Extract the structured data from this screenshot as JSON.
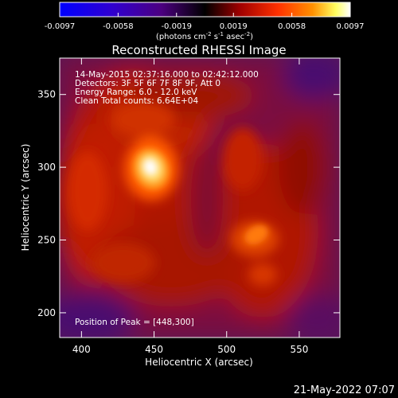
{
  "colorbar": {
    "ticks": [
      "-0.0097",
      "-0.0058",
      "-0.0019",
      "0.0019",
      "0.0058",
      "0.0097"
    ],
    "tick_values": [
      -0.0097,
      -0.0058,
      -0.0019,
      0.0019,
      0.0058,
      0.0097
    ],
    "range": [
      -0.0097,
      0.0097
    ],
    "units_prefix": "(photons cm",
    "units_exp1": "-2",
    "units_mid": " s",
    "units_exp2": "-1",
    "units_mid2": " asec",
    "units_exp3": "-2",
    "units_suffix": ")",
    "colors": [
      "#0000ff",
      "#3000cc",
      "#5000a0",
      "#000000",
      "#a00000",
      "#ff3000",
      "#ff9000",
      "#ffff60",
      "#ffffff"
    ]
  },
  "image": {
    "title": "Reconstructed RHESSI Image",
    "info_lines": [
      "14-May-2015 02:37:16.000 to 02:42:12.000",
      "Detectors: 3F 5F 6F 7F 8F 9F, Att 0",
      "Energy Range: 6.0 - 12.0 keV",
      "Clean     Total counts: 6.64E+04"
    ],
    "peak_label": "Position of Peak = [448,300]",
    "peak_x": 448,
    "peak_y": 300,
    "xlabel": "Heliocentric X (arcsec)",
    "ylabel": "Heliocentric Y (arcsec)",
    "xticks": [
      "400",
      "450",
      "500",
      "550"
    ],
    "xtick_values": [
      400,
      450,
      500,
      550
    ],
    "yticks": [
      "200",
      "250",
      "300",
      "350"
    ],
    "ytick_values": [
      200,
      250,
      300,
      350
    ],
    "xlim": [
      385,
      578
    ],
    "ylim": [
      183,
      375
    ]
  },
  "footer": {
    "date": "21-May-2022 07:07"
  }
}
